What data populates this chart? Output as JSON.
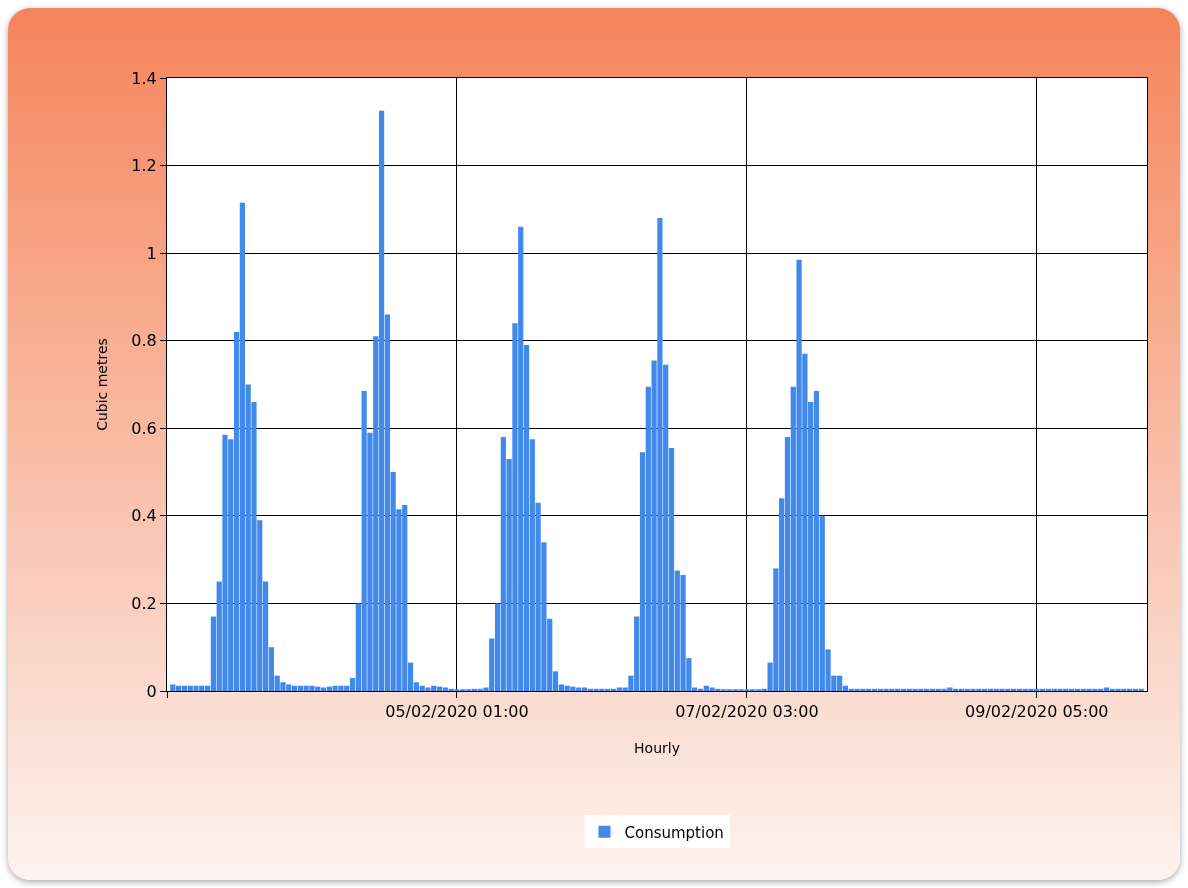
{
  "chart_data": {
    "type": "bar",
    "xlabel": "Hourly",
    "ylabel": "Cubic metres",
    "x": [
      "2020-02-03T00:00",
      "2020-02-03T01:00",
      "2020-02-03T02:00",
      "2020-02-03T03:00",
      "2020-02-03T04:00",
      "2020-02-03T05:00",
      "2020-02-03T06:00",
      "2020-02-03T07:00",
      "2020-02-03T08:00",
      "2020-02-03T09:00",
      "2020-02-03T10:00",
      "2020-02-03T11:00",
      "2020-02-03T12:00",
      "2020-02-03T13:00",
      "2020-02-03T14:00",
      "2020-02-03T15:00",
      "2020-02-03T16:00",
      "2020-02-03T17:00",
      "2020-02-03T18:00",
      "2020-02-03T19:00",
      "2020-02-03T20:00",
      "2020-02-03T21:00",
      "2020-02-03T22:00",
      "2020-02-03T23:00",
      "2020-02-04T00:00",
      "2020-02-04T01:00",
      "2020-02-04T02:00",
      "2020-02-04T03:00",
      "2020-02-04T04:00",
      "2020-02-04T05:00",
      "2020-02-04T06:00",
      "2020-02-04T07:00",
      "2020-02-04T08:00",
      "2020-02-04T09:00",
      "2020-02-04T10:00",
      "2020-02-04T11:00",
      "2020-02-04T12:00",
      "2020-02-04T13:00",
      "2020-02-04T14:00",
      "2020-02-04T15:00",
      "2020-02-04T16:00",
      "2020-02-04T17:00",
      "2020-02-04T18:00",
      "2020-02-04T19:00",
      "2020-02-04T20:00",
      "2020-02-04T21:00",
      "2020-02-04T22:00",
      "2020-02-04T23:00",
      "2020-02-05T00:00",
      "2020-02-05T01:00",
      "2020-02-05T02:00",
      "2020-02-05T03:00",
      "2020-02-05T04:00",
      "2020-02-05T05:00",
      "2020-02-05T06:00",
      "2020-02-05T07:00",
      "2020-02-05T08:00",
      "2020-02-05T09:00",
      "2020-02-05T10:00",
      "2020-02-05T11:00",
      "2020-02-05T12:00",
      "2020-02-05T13:00",
      "2020-02-05T14:00",
      "2020-02-05T15:00",
      "2020-02-05T16:00",
      "2020-02-05T17:00",
      "2020-02-05T18:00",
      "2020-02-05T19:00",
      "2020-02-05T20:00",
      "2020-02-05T21:00",
      "2020-02-05T22:00",
      "2020-02-05T23:00",
      "2020-02-06T00:00",
      "2020-02-06T01:00",
      "2020-02-06T02:00",
      "2020-02-06T03:00",
      "2020-02-06T04:00",
      "2020-02-06T05:00",
      "2020-02-06T06:00",
      "2020-02-06T07:00",
      "2020-02-06T08:00",
      "2020-02-06T09:00",
      "2020-02-06T10:00",
      "2020-02-06T11:00",
      "2020-02-06T12:00",
      "2020-02-06T13:00",
      "2020-02-06T14:00",
      "2020-02-06T15:00",
      "2020-02-06T16:00",
      "2020-02-06T17:00",
      "2020-02-06T18:00",
      "2020-02-06T19:00",
      "2020-02-06T20:00",
      "2020-02-06T21:00",
      "2020-02-06T22:00",
      "2020-02-06T23:00",
      "2020-02-07T00:00",
      "2020-02-07T01:00",
      "2020-02-07T02:00",
      "2020-02-07T03:00",
      "2020-02-07T04:00",
      "2020-02-07T05:00",
      "2020-02-07T06:00",
      "2020-02-07T07:00",
      "2020-02-07T08:00",
      "2020-02-07T09:00",
      "2020-02-07T10:00",
      "2020-02-07T11:00",
      "2020-02-07T12:00",
      "2020-02-07T13:00",
      "2020-02-07T14:00",
      "2020-02-07T15:00",
      "2020-02-07T16:00",
      "2020-02-07T17:00",
      "2020-02-07T18:00",
      "2020-02-07T19:00",
      "2020-02-07T20:00",
      "2020-02-07T21:00",
      "2020-02-07T22:00",
      "2020-02-07T23:00",
      "2020-02-08T00:00",
      "2020-02-08T01:00",
      "2020-02-08T02:00",
      "2020-02-08T03:00",
      "2020-02-08T04:00",
      "2020-02-08T05:00",
      "2020-02-08T06:00",
      "2020-02-08T07:00",
      "2020-02-08T08:00",
      "2020-02-08T09:00",
      "2020-02-08T10:00",
      "2020-02-08T11:00",
      "2020-02-08T12:00",
      "2020-02-08T13:00",
      "2020-02-08T14:00",
      "2020-02-08T15:00",
      "2020-02-08T16:00",
      "2020-02-08T17:00",
      "2020-02-08T18:00",
      "2020-02-08T19:00",
      "2020-02-08T20:00",
      "2020-02-08T21:00",
      "2020-02-08T22:00",
      "2020-02-08T23:00",
      "2020-02-09T00:00",
      "2020-02-09T01:00",
      "2020-02-09T02:00",
      "2020-02-09T03:00",
      "2020-02-09T04:00",
      "2020-02-09T05:00",
      "2020-02-09T06:00",
      "2020-02-09T07:00",
      "2020-02-09T08:00",
      "2020-02-09T09:00",
      "2020-02-09T10:00",
      "2020-02-09T11:00",
      "2020-02-09T12:00",
      "2020-02-09T13:00",
      "2020-02-09T14:00",
      "2020-02-09T15:00",
      "2020-02-09T16:00",
      "2020-02-09T17:00",
      "2020-02-09T18:00",
      "2020-02-09T19:00",
      "2020-02-09T20:00",
      "2020-02-09T21:00",
      "2020-02-09T22:00",
      "2020-02-09T23:00"
    ],
    "series": [
      {
        "name": "Consumption",
        "color": "#4189ea",
        "values": [
          0.015,
          0.012,
          0.012,
          0.012,
          0.012,
          0.012,
          0.012,
          0.17,
          0.25,
          0.585,
          0.575,
          0.82,
          1.115,
          0.7,
          0.66,
          0.39,
          0.25,
          0.1,
          0.035,
          0.02,
          0.015,
          0.012,
          0.012,
          0.012,
          0.012,
          0.01,
          0.008,
          0.01,
          0.012,
          0.012,
          0.012,
          0.03,
          0.2,
          0.685,
          0.59,
          0.81,
          1.325,
          0.86,
          0.5,
          0.415,
          0.425,
          0.065,
          0.02,
          0.012,
          0.008,
          0.012,
          0.01,
          0.008,
          0.005,
          0.004,
          0.004,
          0.004,
          0.005,
          0.005,
          0.008,
          0.12,
          0.2,
          0.58,
          0.53,
          0.84,
          1.06,
          0.79,
          0.575,
          0.43,
          0.34,
          0.165,
          0.045,
          0.015,
          0.012,
          0.01,
          0.008,
          0.008,
          0.005,
          0.005,
          0.005,
          0.005,
          0.005,
          0.008,
          0.008,
          0.035,
          0.17,
          0.545,
          0.695,
          0.755,
          1.08,
          0.745,
          0.555,
          0.275,
          0.265,
          0.075,
          0.008,
          0.005,
          0.012,
          0.008,
          0.005,
          0.004,
          0.004,
          0.004,
          0.004,
          0.004,
          0.004,
          0.004,
          0.005,
          0.065,
          0.28,
          0.44,
          0.58,
          0.695,
          0.985,
          0.77,
          0.66,
          0.685,
          0.4,
          0.095,
          0.035,
          0.035,
          0.012,
          0.005,
          0.005,
          0.005,
          0.005,
          0.005,
          0.005,
          0.005,
          0.005,
          0.005,
          0.005,
          0.005,
          0.005,
          0.005,
          0.005,
          0.005,
          0.005,
          0.005,
          0.008,
          0.005,
          0.005,
          0.005,
          0.005,
          0.005,
          0.005,
          0.005,
          0.005,
          0.005,
          0.005,
          0.005,
          0.005,
          0.005,
          0.005,
          0.005,
          0.005,
          0.005,
          0.005,
          0.005,
          0.005,
          0.005,
          0.005,
          0.005,
          0.005,
          0.005,
          0.005,
          0.008,
          0.005,
          0.005,
          0.005,
          0.005,
          0.005,
          0.005
        ]
      }
    ],
    "xlim": [
      "2020-02-02T23:00",
      "2020-02-10T00:00"
    ],
    "xticks": [
      {
        "value": "2020-02-02T23:00",
        "label": null
      },
      {
        "value": "2020-02-05T01:00",
        "label": "05/02/2020 01:00"
      },
      {
        "value": "2020-02-07T03:00",
        "label": "07/02/2020 03:00"
      },
      {
        "value": "2020-02-09T05:00",
        "label": "09/02/2020 05:00"
      }
    ],
    "ylim": [
      0,
      1.4
    ],
    "yticks": [
      0,
      0.2,
      0.4,
      0.6,
      0.8,
      1,
      1.2,
      1.4
    ],
    "grid": true,
    "legend": "bottom"
  }
}
